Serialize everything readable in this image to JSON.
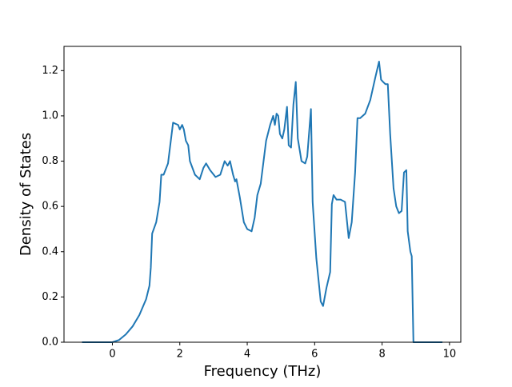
{
  "chart_data": {
    "type": "line",
    "xlabel": "Frequency (THz)",
    "ylabel": "Density of States",
    "x": [
      -0.9,
      0,
      0.2,
      0.4,
      0.6,
      0.8,
      1.0,
      1.1,
      1.14,
      1.18,
      1.3,
      1.4,
      1.45,
      1.52,
      1.65,
      1.8,
      1.95,
      2.0,
      2.07,
      2.12,
      2.18,
      2.25,
      2.3,
      2.45,
      2.59,
      2.7,
      2.78,
      2.9,
      3.06,
      3.2,
      3.33,
      3.42,
      3.49,
      3.58,
      3.64,
      3.68,
      3.78,
      3.9,
      4.0,
      4.13,
      4.22,
      4.3,
      4.4,
      4.56,
      4.68,
      4.77,
      4.82,
      4.87,
      4.92,
      4.97,
      5.04,
      5.1,
      5.18,
      5.23,
      5.3,
      5.37,
      5.44,
      5.5,
      5.61,
      5.72,
      5.78,
      5.89,
      5.94,
      6.05,
      6.18,
      6.25,
      6.35,
      6.46,
      6.51,
      6.56,
      6.65,
      6.77,
      6.9,
      7.01,
      7.1,
      7.2,
      7.27,
      7.35,
      7.5,
      7.65,
      7.8,
      7.91,
      7.97,
      8.03,
      8.1,
      8.17,
      8.24,
      8.34,
      8.42,
      8.5,
      8.58,
      8.65,
      8.72,
      8.76,
      8.84,
      8.88,
      8.93,
      9.79
    ],
    "values": [
      0,
      0,
      0.01,
      0.035,
      0.07,
      0.12,
      0.19,
      0.25,
      0.33,
      0.48,
      0.53,
      0.62,
      0.74,
      0.74,
      0.79,
      0.97,
      0.96,
      0.94,
      0.96,
      0.94,
      0.89,
      0.87,
      0.8,
      0.74,
      0.72,
      0.77,
      0.79,
      0.76,
      0.73,
      0.74,
      0.8,
      0.78,
      0.8,
      0.74,
      0.71,
      0.72,
      0.64,
      0.53,
      0.5,
      0.49,
      0.55,
      0.65,
      0.7,
      0.89,
      0.96,
      1.0,
      0.96,
      1.01,
      1.0,
      0.92,
      0.9,
      0.94,
      1.04,
      0.87,
      0.86,
      1.05,
      1.15,
      0.9,
      0.8,
      0.79,
      0.82,
      1.03,
      0.62,
      0.37,
      0.18,
      0.16,
      0.24,
      0.31,
      0.61,
      0.65,
      0.63,
      0.63,
      0.62,
      0.46,
      0.53,
      0.75,
      0.99,
      0.99,
      1.01,
      1.07,
      1.17,
      1.24,
      1.16,
      1.15,
      1.14,
      1.14,
      0.92,
      0.68,
      0.6,
      0.57,
      0.58,
      0.75,
      0.76,
      0.49,
      0.4,
      0.38,
      0,
      0
    ],
    "color": "#1f77b4",
    "xlim": [
      -1.435,
      10.335
    ],
    "xticks": [
      0,
      2,
      4,
      6,
      8,
      10
    ],
    "ylim": [
      0,
      1.307
    ],
    "yticks": [
      {
        "value": 0,
        "label": "0.0"
      },
      0.2,
      0.4,
      0.6,
      0.8,
      {
        "value": 1,
        "label": "1.0"
      },
      1.2
    ]
  }
}
